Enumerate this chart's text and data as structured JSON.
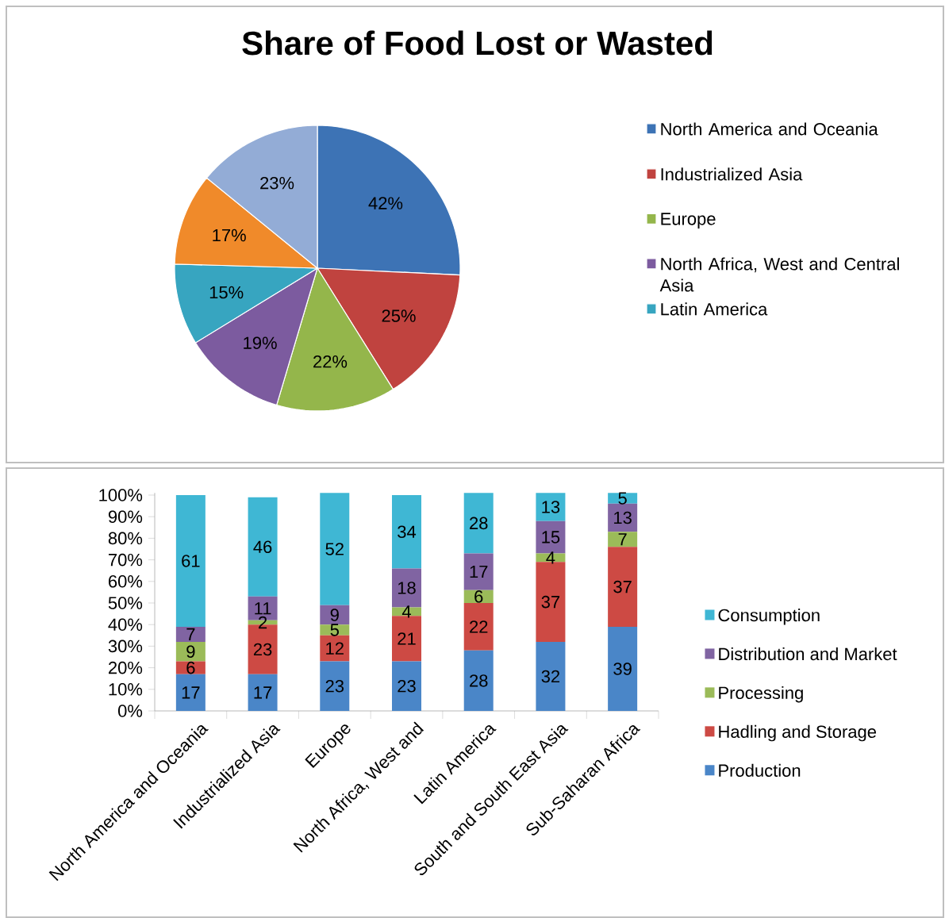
{
  "chart_data": [
    {
      "type": "pie",
      "title": "Share of Food Lost or Wasted",
      "categories": [
        "North America and Oceania",
        "Industrialized Asia",
        "Europe",
        "North Africa, West and Central Asia",
        "Latin America",
        null,
        null
      ],
      "values": [
        42,
        25,
        22,
        19,
        15,
        17,
        23
      ],
      "value_labels": [
        "42%",
        "25%",
        "22%",
        "19%",
        "15%",
        "17%",
        "23%"
      ],
      "colors": [
        "#3d73b5",
        "#c0433f",
        "#94b64b",
        "#7c5b9f",
        "#37a5c0",
        "#f08a2a",
        "#93acd6"
      ],
      "legend": "right"
    },
    {
      "type": "bar",
      "stacked": true,
      "categories": [
        "North America and Oceania",
        "Industrialized Asia",
        "Europe",
        "North Africa, West and",
        "Latin America",
        "South and South East Asia",
        "Sub-Saharan Africa"
      ],
      "series": [
        {
          "name": "Production",
          "color": "#4a86c8",
          "values": [
            17,
            17,
            23,
            23,
            28,
            32,
            39
          ]
        },
        {
          "name": "Hadling and Storage",
          "color": "#cd4a44",
          "values": [
            6,
            23,
            12,
            21,
            22,
            37,
            37
          ]
        },
        {
          "name": "Processing",
          "color": "#9bbb59",
          "values": [
            9,
            2,
            5,
            4,
            6,
            4,
            7
          ]
        },
        {
          "name": "Distribution and Market",
          "color": "#8064a2",
          "values": [
            7,
            11,
            9,
            18,
            17,
            15,
            13
          ]
        },
        {
          "name": "Consumption",
          "color": "#3fb7d4",
          "values": [
            61,
            46,
            52,
            34,
            28,
            13,
            5
          ]
        }
      ],
      "ylim": [
        0,
        101
      ],
      "yticks": [
        {
          "value": 0,
          "label": "0%"
        },
        {
          "value": 10,
          "label": "10%"
        },
        {
          "value": 20,
          "label": "20%"
        },
        {
          "value": 30,
          "label": "30%"
        },
        {
          "value": 40,
          "label": "40%"
        },
        {
          "value": 50,
          "label": "50%"
        },
        {
          "value": 60,
          "label": "60%"
        },
        {
          "value": 70,
          "label": "70%"
        },
        {
          "value": 80,
          "label": "80%"
        },
        {
          "value": 90,
          "label": "90%"
        },
        {
          "value": 100,
          "label": "100%"
        }
      ],
      "data_labels": true,
      "legend": "right"
    }
  ]
}
